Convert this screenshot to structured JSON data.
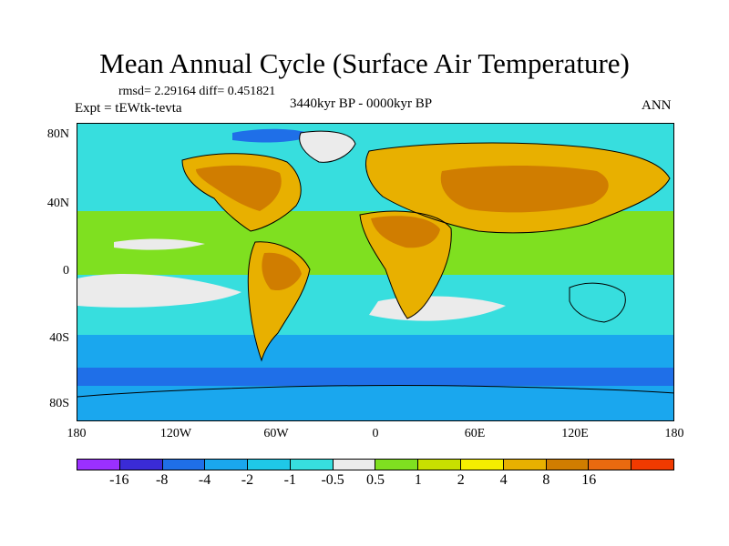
{
  "title": "Mean Annual Cycle (Surface Air Temperature)",
  "stats": "rmsd= 2.29164 diff= 0.451821",
  "experiment": "Expt = tEWtk-tevta",
  "period": "3440kyr BP - 0000kyr BP",
  "season": "ANN",
  "map": {
    "lat_labels": [
      "80N",
      "40N",
      "0",
      "40S",
      "80S"
    ],
    "lon_labels": [
      "180",
      "120W",
      "60W",
      "0",
      "60E",
      "120E",
      "180"
    ]
  },
  "colorbar": {
    "colors": [
      "#9b30ff",
      "#3a2bd6",
      "#1f6fe8",
      "#1aa7ee",
      "#1fc8e8",
      "#37dede",
      "#ebebeb",
      "#7fe020",
      "#c8e000",
      "#f5ee00",
      "#e8b000",
      "#d07d00",
      "#ea6a0f",
      "#f03a00"
    ],
    "labels": [
      "-16",
      "-8",
      "-4",
      "-2",
      "-1",
      "-0.5",
      "0.5",
      "1",
      "2",
      "4",
      "8",
      "16"
    ]
  },
  "palette": {
    "ocean_main": "#37dede",
    "ocean_tropic": "#7fe020",
    "neutral": "#ebebeb",
    "southern_blue": "#1aa7ee",
    "deep_blue": "#1f6fe8",
    "land_warm": "#e8b000",
    "land_hot": "#d07d00",
    "land_yellow": "#f5ee00",
    "land_lime": "#c8e000"
  }
}
